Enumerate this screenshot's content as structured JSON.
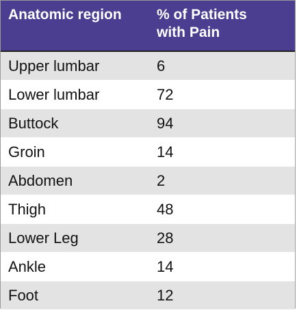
{
  "chart_data": {
    "type": "table",
    "columns": [
      "Anatomic region",
      "% of Patients\nwith Pain"
    ],
    "header_line1": "% of Patients",
    "header_line2": "with Pain",
    "rows": [
      {
        "region": "Upper lumbar",
        "percent": "6"
      },
      {
        "region": "Lower lumbar",
        "percent": "72"
      },
      {
        "region": "Buttock",
        "percent": "94"
      },
      {
        "region": "Groin",
        "percent": "14"
      },
      {
        "region": "Abdomen",
        "percent": "2"
      },
      {
        "region": "Thigh",
        "percent": "48"
      },
      {
        "region": "Lower Leg",
        "percent": "28"
      },
      {
        "region": "Ankle",
        "percent": "14"
      },
      {
        "region": "Foot",
        "percent": "12"
      }
    ]
  },
  "colors": {
    "header_bg": "#4b3d8f",
    "header_text": "#ffffff",
    "row_shade": "#e3e3e3",
    "row_plain": "#ffffff"
  }
}
